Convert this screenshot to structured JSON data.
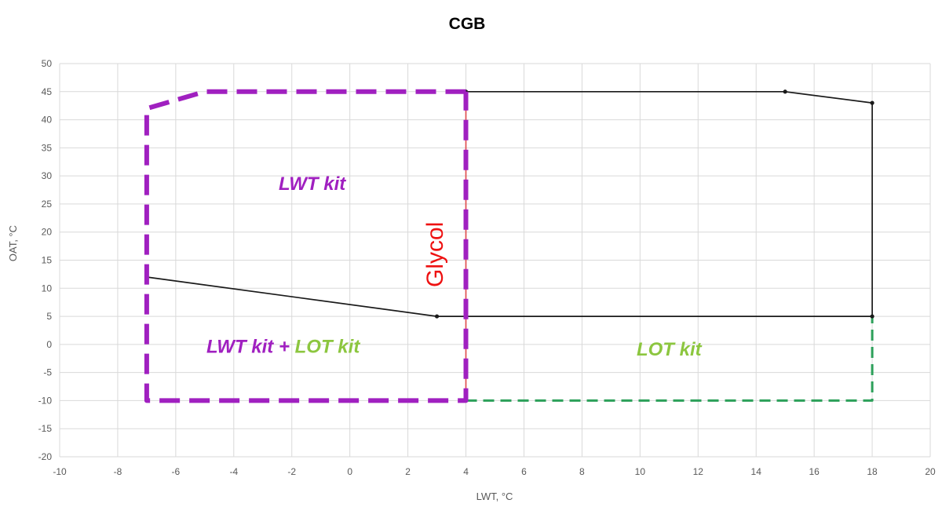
{
  "chart_data": {
    "type": "line",
    "title": "CGB",
    "xlabel": "LWT, °C",
    "ylabel": "OAT, °C",
    "xlim": [
      -10,
      20
    ],
    "ylim": [
      -20,
      50
    ],
    "x_ticks": [
      -10,
      -8,
      -6,
      -4,
      -2,
      0,
      2,
      4,
      6,
      8,
      10,
      12,
      14,
      16,
      18,
      20
    ],
    "y_ticks": [
      -20,
      -15,
      -10,
      -5,
      0,
      5,
      10,
      15,
      20,
      25,
      30,
      35,
      40,
      45,
      50
    ],
    "grid": true,
    "series": [
      {
        "key": "standard",
        "style": "solid",
        "color": "#1a1a1a",
        "markers": true,
        "points": [
          [
            -7,
            12
          ],
          [
            3,
            5
          ],
          [
            18,
            5
          ],
          [
            18,
            43
          ],
          [
            15,
            45
          ],
          [
            4,
            45
          ]
        ]
      },
      {
        "key": "lwt_kit",
        "style": "dashed-thick",
        "color": "#a020c0",
        "markers": false,
        "points": [
          [
            4,
            45
          ],
          [
            -5,
            45
          ],
          [
            -7,
            42
          ],
          [
            -7,
            -10
          ],
          [
            4,
            -10
          ],
          [
            4,
            45
          ]
        ]
      },
      {
        "key": "lot_kit",
        "style": "dashed",
        "color": "#2ca05a",
        "markers": false,
        "points": [
          [
            4,
            -10
          ],
          [
            18,
            -10
          ],
          [
            18,
            5
          ]
        ]
      },
      {
        "key": "glycol",
        "style": "solid",
        "color": "#e05050",
        "markers": false,
        "points": [
          [
            4,
            -10
          ],
          [
            4,
            45
          ]
        ]
      }
    ],
    "annotations": [
      {
        "key": "lwt_kit_label",
        "text": "LWT kit",
        "x": -1.3,
        "y": 27.5,
        "color": "#a020c0"
      },
      {
        "key": "lwt_lot_label",
        "parts": [
          {
            "text": "LWT kit",
            "color": "#a020c0"
          },
          {
            "text": " + ",
            "color": "#a020c0"
          },
          {
            "text": "LOT kit",
            "color": "#8cc63f"
          }
        ],
        "x": -2.3,
        "y": -1.5
      },
      {
        "key": "lot_kit_label",
        "text": "LOT kit",
        "x": 11,
        "y": -2,
        "color": "#8cc63f"
      },
      {
        "key": "glycol_label",
        "text": "Glycol",
        "x": 3.2,
        "y": 16,
        "color": "#ee1111",
        "rotation": -90
      }
    ]
  }
}
